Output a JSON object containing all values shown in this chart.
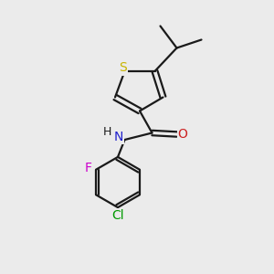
{
  "background_color": "#ebebeb",
  "bond_color": "#1a1a1a",
  "atom_colors": {
    "S": "#c8b400",
    "N": "#2020cc",
    "O": "#cc2020",
    "F": "#cc00cc",
    "Cl": "#009900",
    "C": "#1a1a1a",
    "H": "#1a1a1a"
  },
  "figsize": [
    3.0,
    3.0
  ],
  "dpi": 100,
  "bond_lw": 1.6,
  "font_size": 9.5
}
